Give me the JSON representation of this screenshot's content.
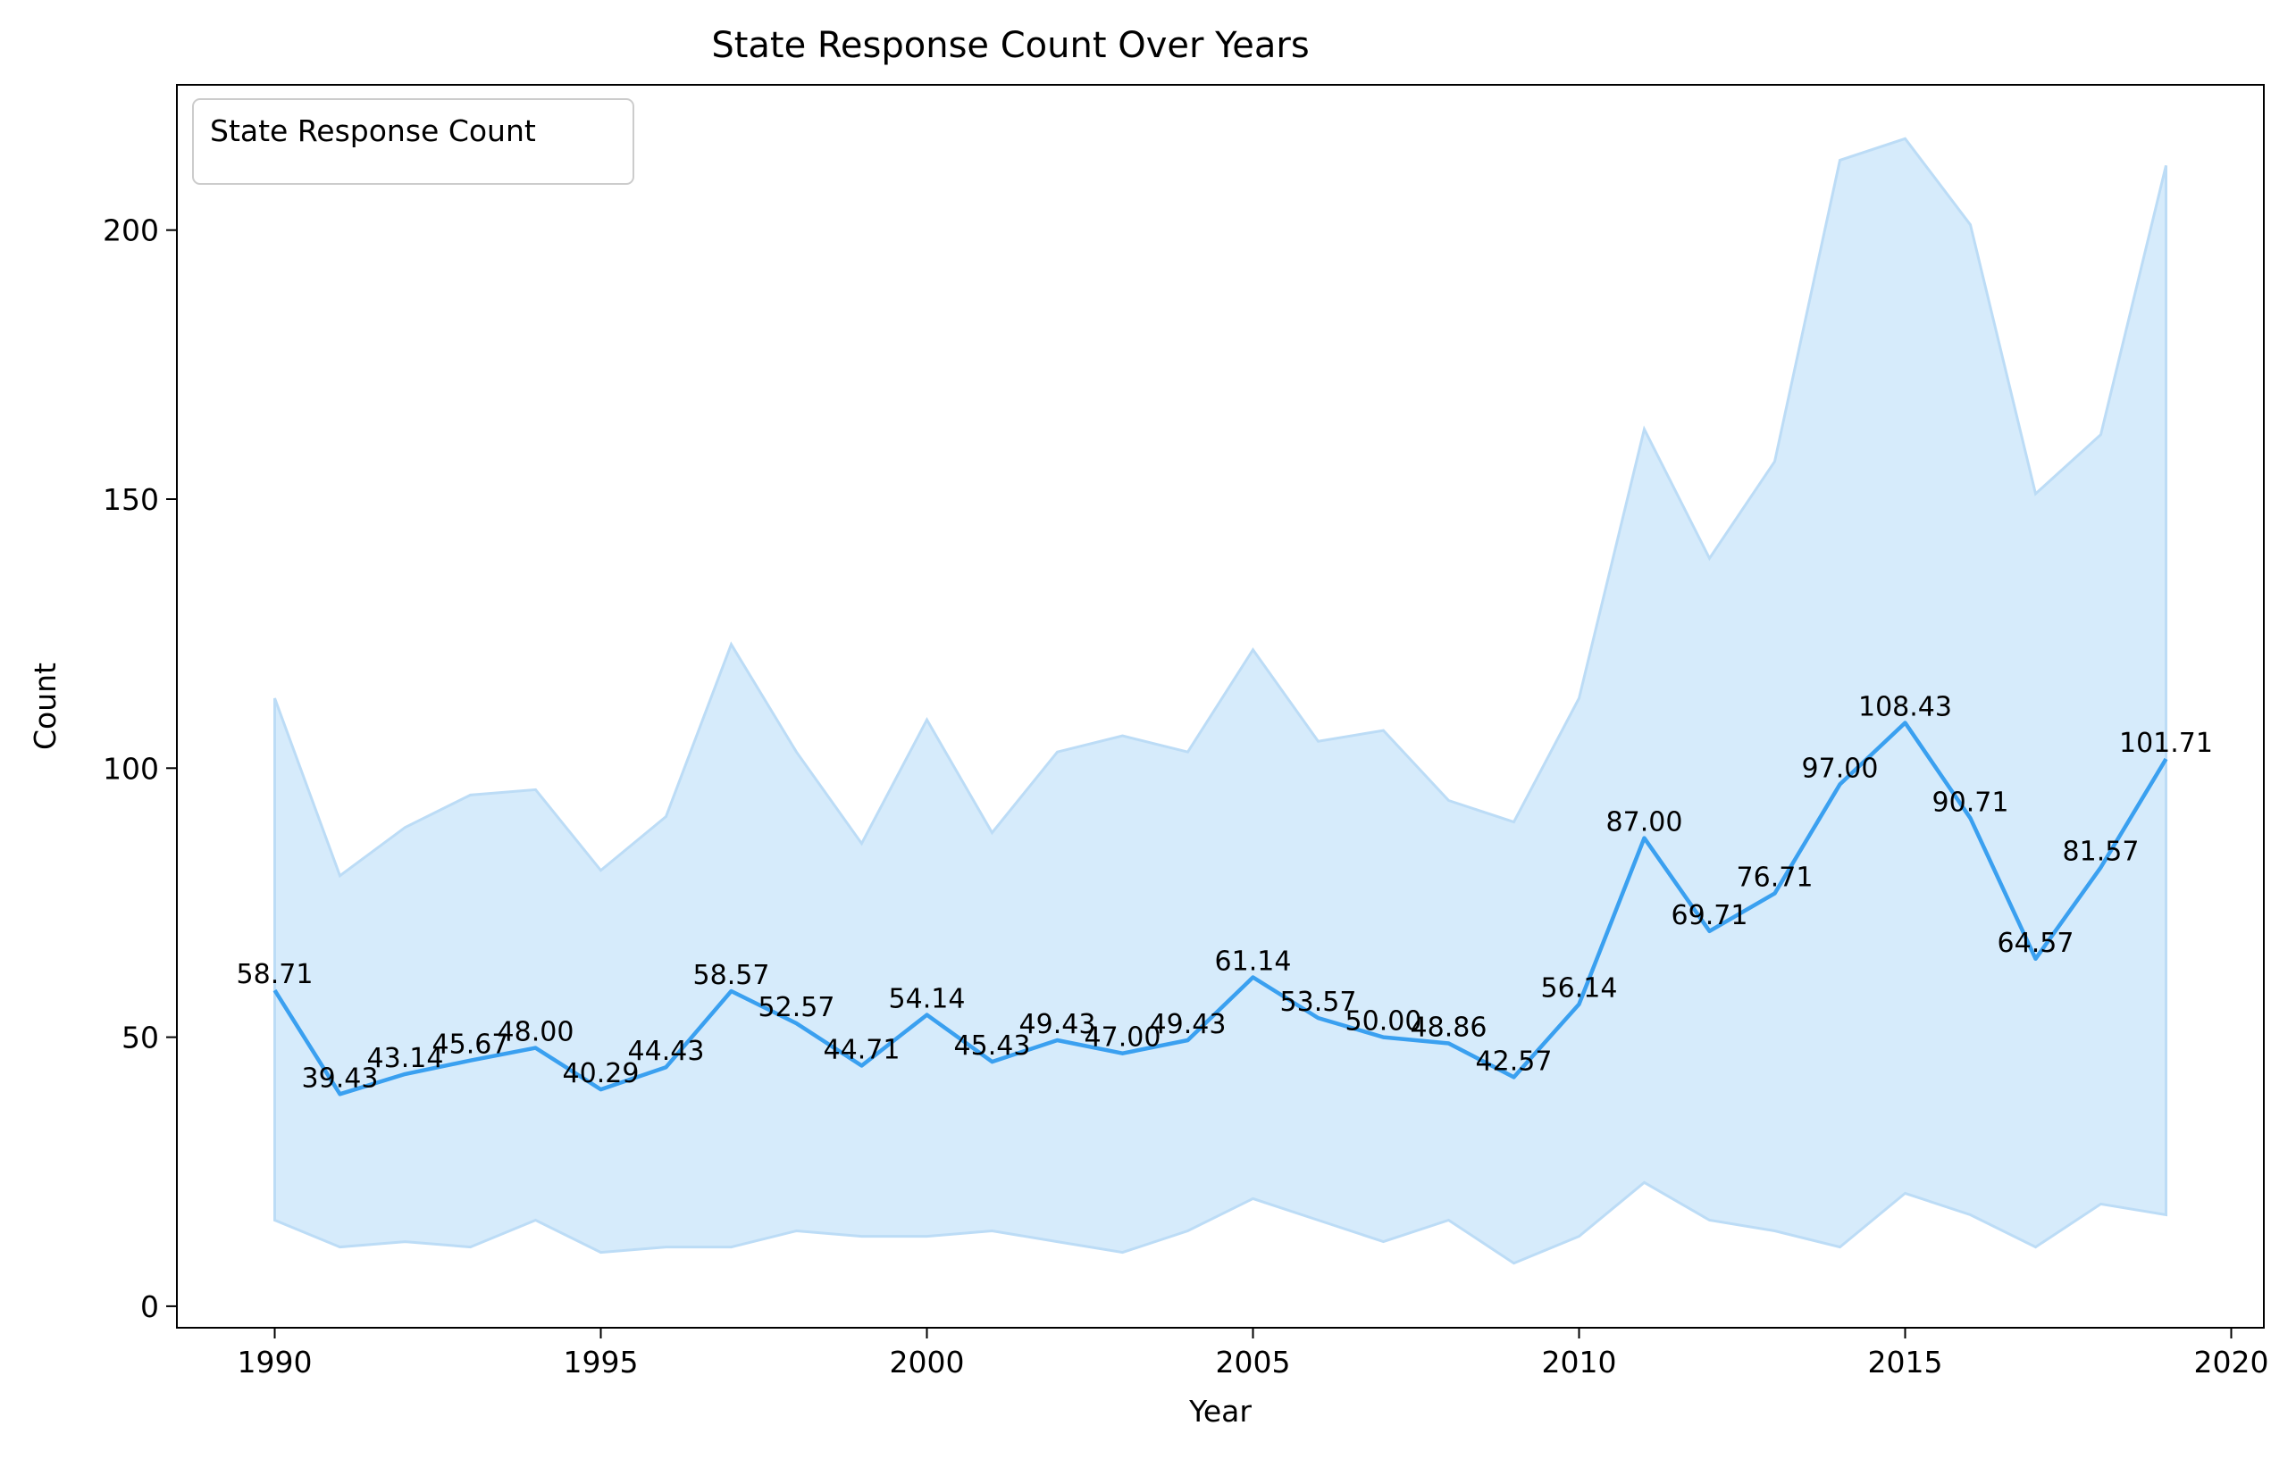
{
  "chart_data": {
    "type": "line",
    "title": "State Response Count Over Years",
    "xlabel": "Year",
    "ylabel": "Count",
    "xlim": [
      1988.5,
      2020.5
    ],
    "ylim": [
      -4,
      227
    ],
    "xticks": [
      1990,
      1995,
      2000,
      2005,
      2010,
      2015,
      2020
    ],
    "yticks": [
      0,
      50,
      100,
      150,
      200
    ],
    "legend": {
      "position": "top-left",
      "title": "State Response Count"
    },
    "colors": {
      "line": "#3aa0f0",
      "band_fill": "#d6ebfb",
      "band_edge": "#bcdcf6"
    },
    "series": [
      {
        "x": [
          1990,
          1991,
          1992,
          1993,
          1994,
          1995,
          1996,
          1997,
          1998,
          1999,
          2000,
          2001,
          2002,
          2003,
          2004,
          2005,
          2006,
          2007,
          2008,
          2009,
          2010,
          2011,
          2012,
          2013,
          2014,
          2015,
          2016,
          2017,
          2018,
          2019
        ],
        "values": [
          58.71,
          39.43,
          43.14,
          45.67,
          48.0,
          40.29,
          44.43,
          58.57,
          52.57,
          44.71,
          54.14,
          45.43,
          49.43,
          47.0,
          49.43,
          61.14,
          53.57,
          50.0,
          48.86,
          42.57,
          56.14,
          87.0,
          69.71,
          76.71,
          97.0,
          108.43,
          90.71,
          64.57,
          81.57,
          101.71
        ],
        "labels": [
          "58.71",
          "39.43",
          "43.14",
          "45.67",
          "48.00",
          "40.29",
          "44.43",
          "58.57",
          "52.57",
          "44.71",
          "54.14",
          "45.43",
          "49.43",
          "47.00",
          "49.43",
          "61.14",
          "53.57",
          "50.00",
          "48.86",
          "42.57",
          "56.14",
          "87.00",
          "69.71",
          "76.71",
          "97.00",
          "108.43",
          "90.71",
          "64.57",
          "81.57",
          "101.71"
        ],
        "band_upper": [
          113,
          80,
          89,
          95,
          96,
          81,
          91,
          123,
          103,
          86,
          109,
          88,
          103,
          106,
          103,
          122,
          105,
          107,
          94,
          90,
          113,
          163,
          139,
          157,
          213,
          217,
          201,
          151,
          162,
          212
        ],
        "band_lower": [
          16,
          11,
          12,
          11,
          16,
          10,
          11,
          11,
          14,
          13,
          13,
          14,
          12,
          10,
          14,
          20,
          16,
          12,
          16,
          8,
          13,
          23,
          16,
          14,
          11,
          21,
          17,
          11,
          19,
          17
        ]
      }
    ]
  }
}
